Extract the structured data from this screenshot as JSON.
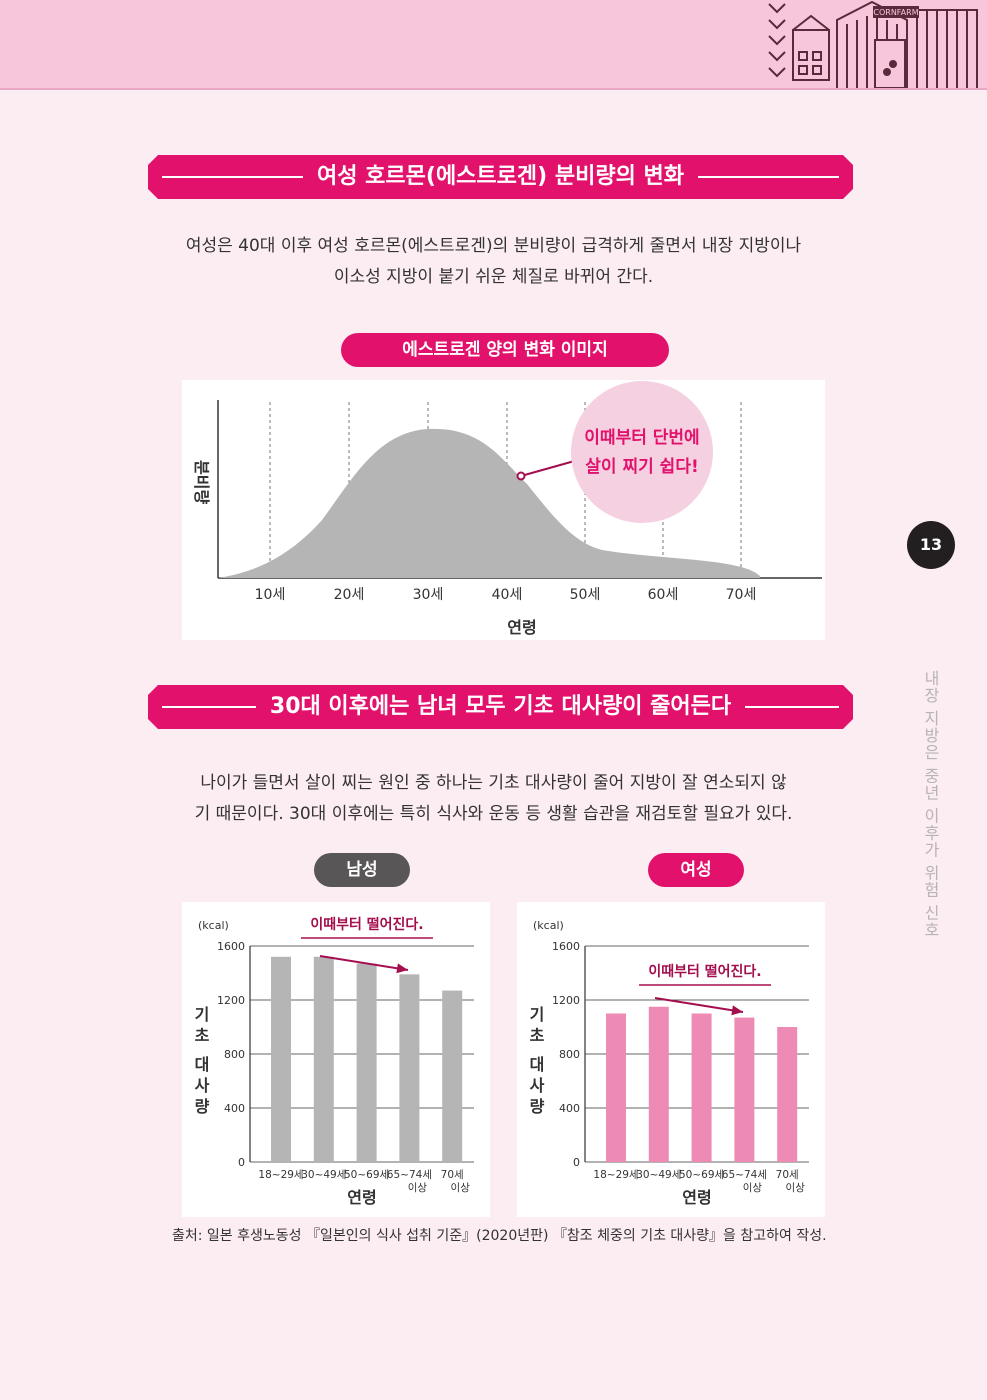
{
  "header": {
    "logo_text": "CORNFARM"
  },
  "page_number": "13",
  "side_title": "내장 지방은 중년 이후가 위험 신호",
  "section1": {
    "title": "여성 호르몬(에스트로겐) 분비량의 변화",
    "paragraph_line1": "여성은 40대 이후 여성 호르몬(에스트로겐)의 분비량이 급격하게 줄면서 내장 지방이나",
    "paragraph_line2": "이소성 지방이 붙기 쉬운 체질로 바뀌어 간다.",
    "chart_title": "에스트로겐 양의 변화 이미지",
    "callout_line1": "이때부터 단번에",
    "callout_line2": "살이 찌기 쉽다!"
  },
  "section2": {
    "title": "30대 이후에는 남녀 모두 기초 대사량이 줄어든다",
    "paragraph_line1": "나이가 들면서 살이 찌는 원인 중 하나는 기초 대사량이 줄어 지방이 잘 연소되지 않",
    "paragraph_line2": "기 때문이다. 30대 이후에는 특히 식사와 운동 등 생활 습관을 재검토할 필요가 있다.",
    "male_label": "남성",
    "female_label": "여성",
    "male_note": "이때부터 떨어진다.",
    "female_note": "이때부터 떨어진다."
  },
  "source": "출처: 일본 후생노동성 『일본인의 식사 섭취 기준』(2020년판) 『참조 체중의 기초 대사량』을 참고하여 작성.",
  "colors": {
    "magenta": "#e2126c",
    "pink_bar": "#ee8bb5",
    "gray_bar": "#b5b5b5",
    "dark_pill": "#595657",
    "callout_circle": "#f5d0e0"
  },
  "chart_data": [
    {
      "type": "area",
      "title": "",
      "xlabel": "연령",
      "ylabel": "분비량",
      "x": [
        "10세",
        "20세",
        "30세",
        "40세",
        "50세",
        "60세",
        "70세"
      ],
      "values": [
        0.15,
        0.55,
        0.98,
        0.78,
        0.25,
        0.12,
        0.08
      ],
      "grid": "vertical dashed",
      "y_ticks_shown": false
    },
    {
      "type": "bar",
      "title": "",
      "unit": "(kcal)",
      "xlabel": "연령",
      "ylabel": "기초 대사량",
      "categories": [
        "18~29세",
        "30~49세",
        "50~69세",
        "65~74세 이상",
        "70세 이상"
      ],
      "values": [
        1520,
        1520,
        1470,
        1390,
        1270
      ],
      "ylim": [
        0,
        1600
      ],
      "yticks": [
        0,
        400,
        800,
        1200,
        1600
      ]
    },
    {
      "type": "bar",
      "title": "",
      "unit": "(kcal)",
      "xlabel": "연령",
      "ylabel": "기초 대사량",
      "categories": [
        "18~29세",
        "30~49세",
        "50~69세",
        "65~74세 이상",
        "70세 이상"
      ],
      "values": [
        1100,
        1150,
        1100,
        1070,
        1000
      ],
      "ylim": [
        0,
        1600
      ],
      "yticks": [
        0,
        400,
        800,
        1200,
        1600
      ]
    }
  ]
}
